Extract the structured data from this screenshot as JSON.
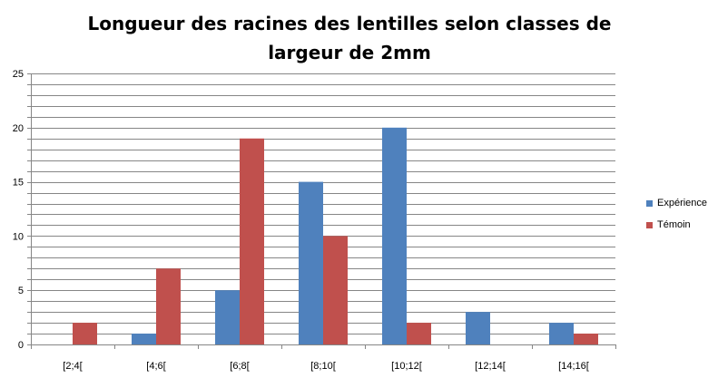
{
  "chart_data": {
    "type": "bar",
    "title": "Longueur des racines des lentilles selon classes de largeur de 2mm",
    "xlabel": "",
    "ylabel": "",
    "categories": [
      "[2;4[",
      "[4;6[",
      "[6;8[",
      "[8;10[",
      "[10;12[",
      "[12;14[",
      "[14;16["
    ],
    "series": [
      {
        "name": "Expérience",
        "color": "#4f81bd",
        "values": [
          0,
          1,
          5,
          15,
          20,
          3,
          2
        ]
      },
      {
        "name": "Témoin",
        "color": "#c0504d",
        "values": [
          2,
          7,
          19,
          10,
          2,
          0,
          1
        ]
      }
    ],
    "ylim": [
      0,
      25
    ],
    "yticks": [
      0,
      5,
      10,
      15,
      20,
      25
    ],
    "grid": true,
    "legend_position": "right"
  }
}
